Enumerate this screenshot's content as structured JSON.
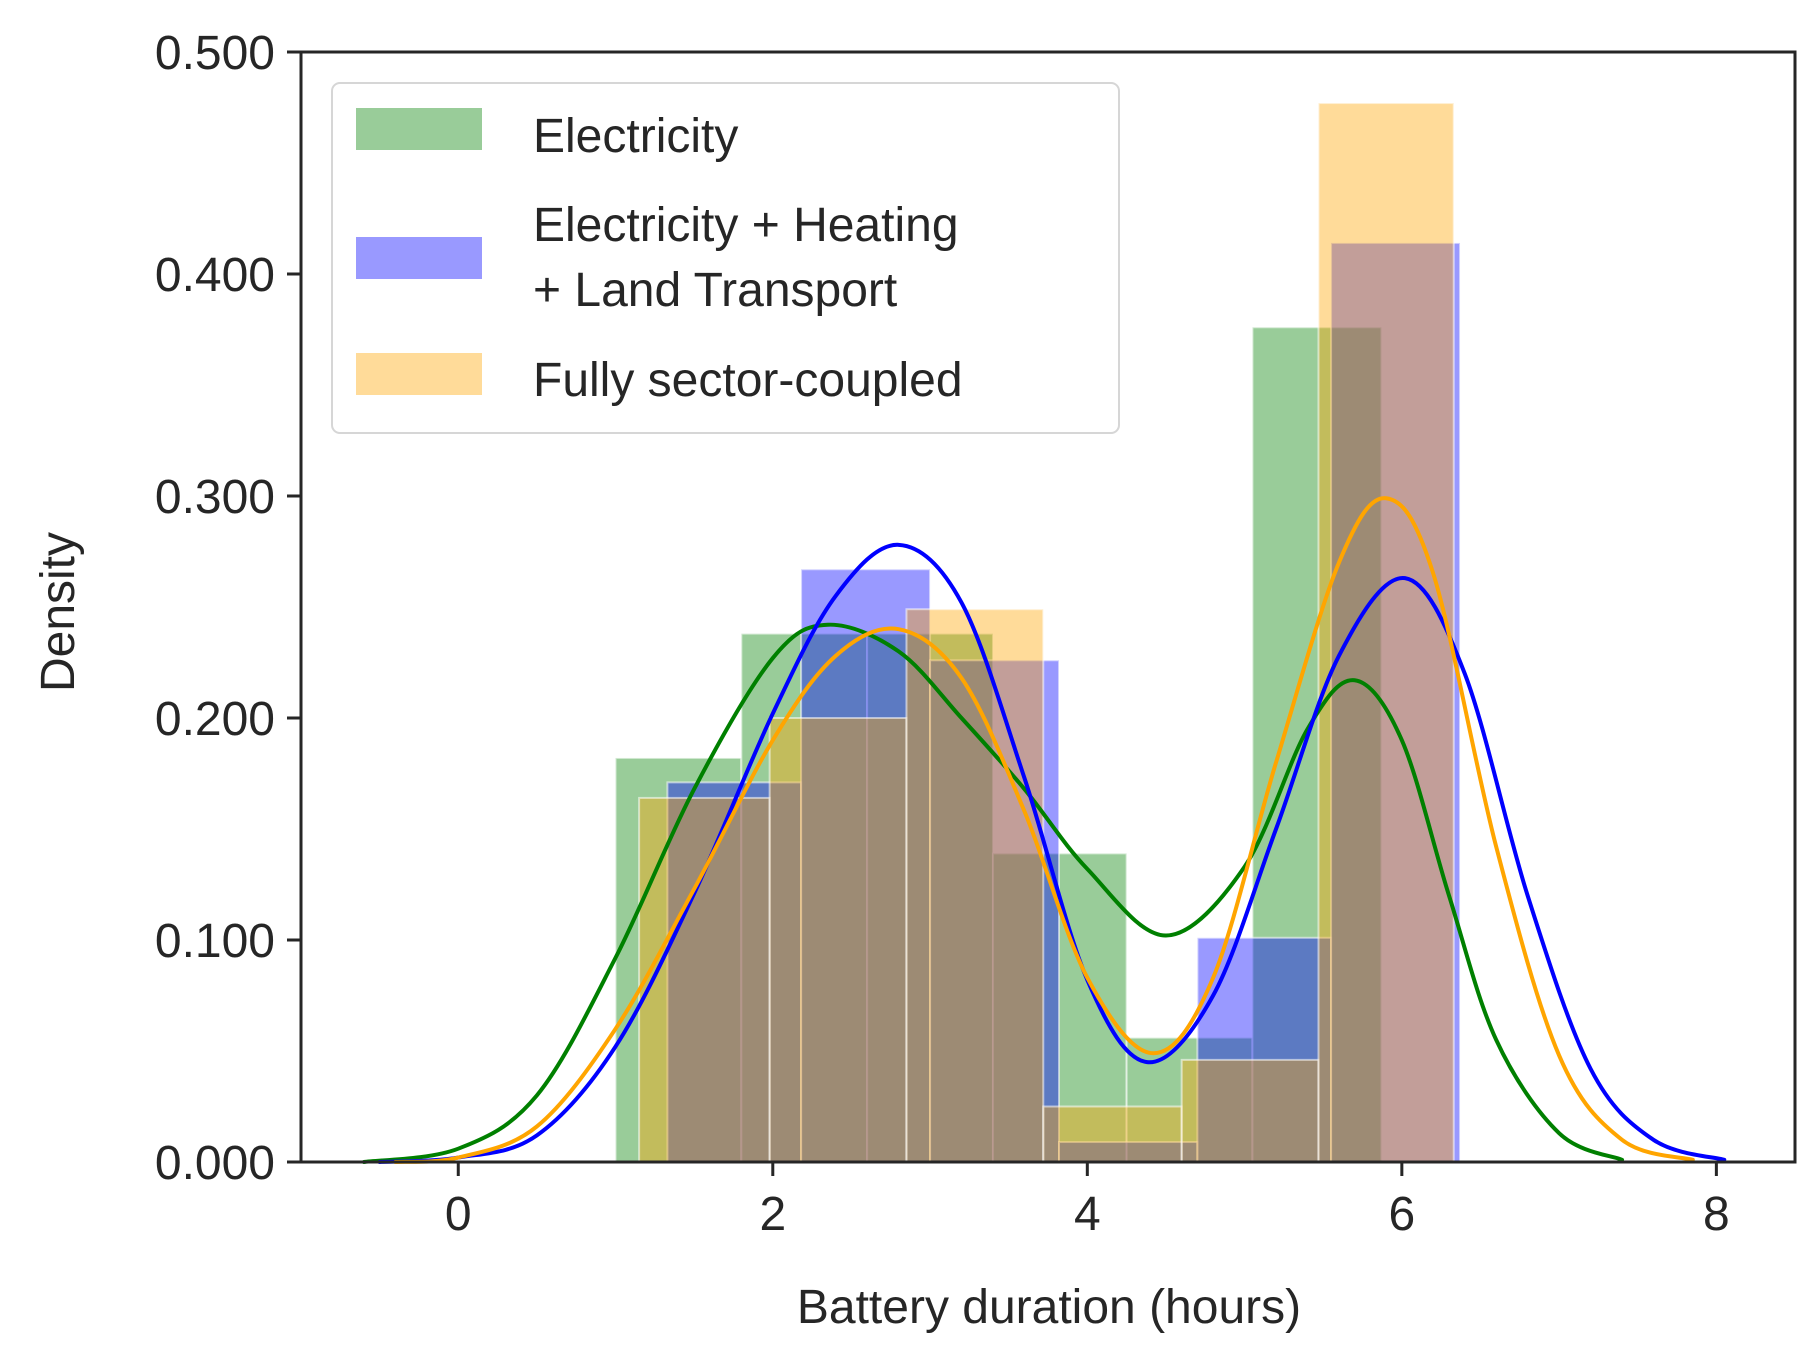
{
  "chart_data": {
    "type": "histogram+kde",
    "xlabel": "Battery duration (hours)",
    "ylabel": "Density",
    "xlim": [
      -1.0,
      8.5
    ],
    "ylim": [
      0.0,
      0.5
    ],
    "xticks": [
      0,
      2,
      4,
      6,
      8
    ],
    "xtick_labels": [
      "0",
      "2",
      "4",
      "6",
      "8"
    ],
    "yticks": [
      0.0,
      0.1,
      0.2,
      0.3,
      0.4,
      0.5
    ],
    "ytick_labels": [
      "0.000",
      "0.100",
      "0.200",
      "0.300",
      "0.400",
      "0.500"
    ],
    "legend_position": "upper-left",
    "series": [
      {
        "name": "Electricity",
        "color": "#008000",
        "hist_alpha": 0.4,
        "bins": [
          {
            "x0": 1.0,
            "x1": 1.8,
            "h": 0.182
          },
          {
            "x0": 1.8,
            "x1": 2.6,
            "h": 0.238
          },
          {
            "x0": 2.6,
            "x1": 3.4,
            "h": 0.238
          },
          {
            "x0": 3.4,
            "x1": 4.25,
            "h": 0.139
          },
          {
            "x0": 4.25,
            "x1": 5.05,
            "h": 0.056
          },
          {
            "x0": 5.05,
            "x1": 5.87,
            "h": 0.376
          }
        ],
        "kde": {
          "x": [
            -0.6,
            0.0,
            0.5,
            1.0,
            1.5,
            2.0,
            2.35,
            2.8,
            3.2,
            3.6,
            4.0,
            4.5,
            5.0,
            5.4,
            5.7,
            6.0,
            6.3,
            6.6,
            7.0,
            7.4
          ],
          "y": [
            0.0,
            0.006,
            0.03,
            0.092,
            0.168,
            0.227,
            0.242,
            0.23,
            0.2,
            0.168,
            0.132,
            0.102,
            0.133,
            0.195,
            0.217,
            0.19,
            0.12,
            0.055,
            0.013,
            0.001
          ]
        }
      },
      {
        "name": "Electricity + Heating + Land Transport",
        "color": "#0000ff",
        "hist_alpha": 0.4,
        "bins": [
          {
            "x0": 1.33,
            "x1": 2.18,
            "h": 0.171
          },
          {
            "x0": 2.18,
            "x1": 3.0,
            "h": 0.267
          },
          {
            "x0": 3.0,
            "x1": 3.82,
            "h": 0.226
          },
          {
            "x0": 3.82,
            "x1": 4.7,
            "h": 0.009
          },
          {
            "x0": 4.7,
            "x1": 5.55,
            "h": 0.101
          },
          {
            "x0": 5.55,
            "x1": 6.37,
            "h": 0.414
          }
        ],
        "kde": {
          "x": [
            -0.5,
            0.0,
            0.5,
            1.0,
            1.5,
            2.0,
            2.4,
            2.8,
            3.2,
            3.6,
            4.0,
            4.38,
            4.8,
            5.2,
            5.6,
            6.02,
            6.4,
            6.8,
            7.2,
            7.6,
            8.05
          ],
          "y": [
            0.0,
            0.002,
            0.012,
            0.052,
            0.121,
            0.202,
            0.255,
            0.278,
            0.252,
            0.173,
            0.082,
            0.045,
            0.075,
            0.15,
            0.228,
            0.263,
            0.22,
            0.12,
            0.042,
            0.01,
            0.001
          ]
        }
      },
      {
        "name": "Fully sector-coupled",
        "color": "#ffa500",
        "hist_alpha": 0.4,
        "bins": [
          {
            "x0": 1.15,
            "x1": 1.98,
            "h": 0.164
          },
          {
            "x0": 1.98,
            "x1": 2.85,
            "h": 0.2
          },
          {
            "x0": 2.85,
            "x1": 3.72,
            "h": 0.249
          },
          {
            "x0": 3.72,
            "x1": 4.6,
            "h": 0.025
          },
          {
            "x0": 4.6,
            "x1": 5.47,
            "h": 0.046
          },
          {
            "x0": 5.47,
            "x1": 6.33,
            "h": 0.477
          }
        ],
        "kde": {
          "x": [
            -0.4,
            0.0,
            0.5,
            1.0,
            1.5,
            2.0,
            2.4,
            2.8,
            3.2,
            3.6,
            4.0,
            4.42,
            4.8,
            5.2,
            5.6,
            5.9,
            6.2,
            6.6,
            7.0,
            7.4,
            7.85
          ],
          "y": [
            0.0,
            0.002,
            0.016,
            0.06,
            0.123,
            0.19,
            0.228,
            0.24,
            0.218,
            0.158,
            0.083,
            0.049,
            0.083,
            0.18,
            0.27,
            0.299,
            0.265,
            0.142,
            0.048,
            0.01,
            0.001
          ]
        }
      }
    ]
  },
  "legend": {
    "items": [
      {
        "lines": [
          "Electricity"
        ]
      },
      {
        "lines": [
          "Electricity + Heating",
          "+ Land Transport"
        ]
      },
      {
        "lines": [
          "Fully sector-coupled"
        ]
      }
    ]
  }
}
